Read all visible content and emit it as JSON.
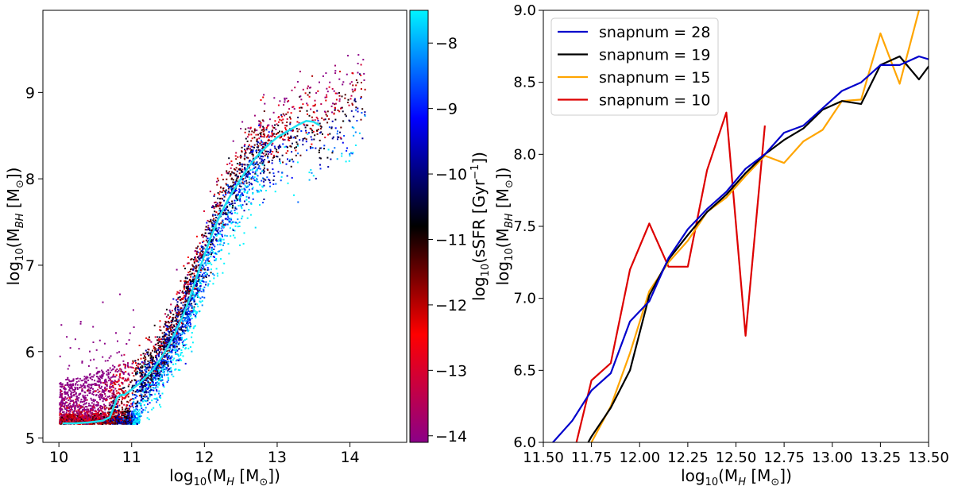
{
  "chart_data": [
    {
      "type": "scatter",
      "xlabel_main": "log",
      "xlabel_sub": "10",
      "xlabel_rest": "(M",
      "xlabel_msub": "H",
      "xlabel_unit": " [M",
      "xlabel_odot": "⊙",
      "xlabel_close": "])",
      "ylabel_main": "log",
      "ylabel_sub": "10",
      "ylabel_rest": "(M",
      "ylabel_msub": "BH",
      "ylabel_unit": " [M",
      "ylabel_odot": "⊙",
      "ylabel_close": "])",
      "xlim": [
        9.78,
        14.78
      ],
      "ylim": [
        4.95,
        9.95
      ],
      "xticks": [
        "10",
        "11",
        "12",
        "13",
        "14"
      ],
      "yticks": [
        "5",
        "6",
        "7",
        "8",
        "9"
      ],
      "grid": false,
      "colorbar": {
        "label_main": "log",
        "label_sub": "10",
        "label_rest": "(sSFR [Gyr",
        "label_sup": "−1",
        "label_close": "])",
        "range": [
          -14.1,
          -7.5
        ],
        "ticks": [
          "−8",
          "−9",
          "−10",
          "−11",
          "−12",
          "−13",
          "−14"
        ],
        "colors": [
          "#8b0087",
          "#ff0000",
          "#000000",
          "#0000ff",
          "#00f5ff"
        ]
      },
      "median_line": {
        "color": "#1ee0f0",
        "x": [
          10.05,
          10.2,
          10.4,
          10.6,
          10.7,
          10.75,
          10.8,
          10.85,
          10.9,
          11.0,
          11.1,
          11.2,
          11.3,
          11.4,
          11.5,
          11.6,
          11.7,
          11.8,
          11.9,
          12.0,
          12.1,
          12.2,
          12.3,
          12.4,
          12.5,
          12.6,
          12.7,
          12.8,
          12.9,
          13.0,
          13.1,
          13.2,
          13.3,
          13.4,
          13.5,
          13.58
        ],
        "y": [
          5.17,
          5.17,
          5.18,
          5.2,
          5.24,
          5.35,
          5.47,
          5.5,
          5.5,
          5.56,
          5.63,
          5.71,
          5.8,
          5.92,
          6.06,
          6.22,
          6.41,
          6.62,
          6.88,
          7.12,
          7.35,
          7.55,
          7.72,
          7.87,
          8.0,
          8.13,
          8.24,
          8.33,
          8.41,
          8.48,
          8.53,
          8.58,
          8.63,
          8.67,
          8.66,
          8.62
        ]
      }
    },
    {
      "type": "line",
      "xlabel_main": "log",
      "xlabel_sub": "10",
      "xlabel_rest": "(M",
      "xlabel_msub": "H",
      "xlabel_unit": " [M",
      "xlabel_odot": "⊙",
      "xlabel_close": "])",
      "ylabel_main": "log",
      "ylabel_sub": "10",
      "ylabel_rest": "(M",
      "ylabel_msub": "BH",
      "ylabel_unit": " [M",
      "ylabel_odot": "⊙",
      "ylabel_close": "])",
      "xlim": [
        11.5,
        13.5
      ],
      "ylim": [
        6.0,
        9.0
      ],
      "xticks": [
        "11.50",
        "11.75",
        "12.00",
        "12.25",
        "12.50",
        "12.75",
        "13.00",
        "13.25",
        "13.50"
      ],
      "yticks": [
        "6.0",
        "6.5",
        "7.0",
        "7.5",
        "8.0",
        "8.5",
        "9.0"
      ],
      "grid": false,
      "legend_position": "top-left",
      "series": [
        {
          "name": "snapnum = 28",
          "color": "#0000cc",
          "x": [
            11.45,
            11.55,
            11.65,
            11.75,
            11.85,
            11.95,
            12.05,
            12.15,
            12.25,
            12.35,
            12.45,
            12.55,
            12.65,
            12.75,
            12.85,
            12.95,
            13.05,
            13.15,
            13.25,
            13.35,
            13.45,
            13.55
          ],
          "y": [
            5.88,
            6.0,
            6.15,
            6.36,
            6.48,
            6.84,
            6.98,
            7.28,
            7.48,
            7.62,
            7.74,
            7.9,
            8.0,
            8.15,
            8.2,
            8.32,
            8.44,
            8.5,
            8.62,
            8.62,
            8.68,
            8.64
          ]
        },
        {
          "name": "snapnum = 19",
          "color": "#000000",
          "x": [
            11.65,
            11.75,
            11.85,
            11.95,
            12.05,
            12.15,
            12.25,
            12.35,
            12.45,
            12.55,
            12.65,
            12.75,
            12.85,
            12.95,
            13.05,
            13.15,
            13.25,
            13.35,
            13.45,
            13.55
          ],
          "y": [
            5.8,
            6.04,
            6.24,
            6.5,
            7.02,
            7.27,
            7.44,
            7.6,
            7.72,
            7.87,
            8.0,
            8.1,
            8.18,
            8.31,
            8.37,
            8.35,
            8.62,
            8.68,
            8.52,
            8.7
          ]
        },
        {
          "name": "snapnum = 15",
          "color": "#ffa500",
          "x": [
            11.65,
            11.75,
            11.85,
            11.95,
            12.05,
            12.15,
            12.25,
            12.35,
            12.45,
            12.55,
            12.65,
            12.75,
            12.85,
            12.95,
            13.05,
            13.15,
            13.25,
            13.35,
            13.45
          ],
          "y": [
            5.85,
            6.0,
            6.25,
            6.62,
            7.05,
            7.25,
            7.4,
            7.6,
            7.7,
            7.85,
            7.99,
            7.94,
            8.09,
            8.17,
            8.37,
            8.38,
            8.84,
            8.49,
            9.0
          ]
        },
        {
          "name": "snapnum = 10",
          "color": "#dd0000",
          "x": [
            11.65,
            11.75,
            11.85,
            11.95,
            12.05,
            12.15,
            12.25,
            12.35,
            12.45,
            12.55,
            12.65
          ],
          "y": [
            5.88,
            6.43,
            6.55,
            7.2,
            7.52,
            7.22,
            7.22,
            7.89,
            8.29,
            6.74,
            8.2
          ]
        }
      ]
    }
  ]
}
